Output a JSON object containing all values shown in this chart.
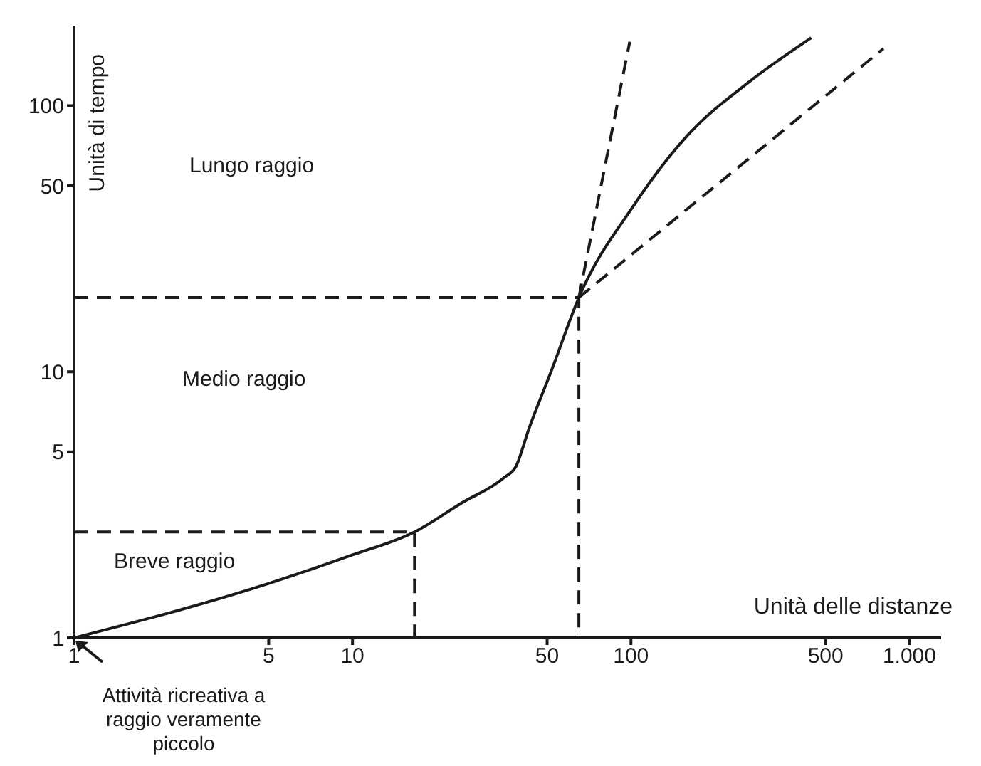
{
  "chart_data": {
    "type": "line",
    "xlabel": "Unità delle distanze",
    "ylabel": "Unità di tempo",
    "log": "xy",
    "grid": false,
    "marker": "none",
    "xlim": [
      1,
      1300
    ],
    "ylim": [
      1,
      200
    ],
    "xticks": [
      1,
      5,
      10,
      50,
      100,
      500,
      {
        "value": 1000,
        "label": "1.000"
      }
    ],
    "yticks": [
      1,
      5,
      10,
      50,
      100
    ],
    "series": [
      {
        "color": "#1a1a1a",
        "line_style": "solid",
        "x": [
          1,
          5,
          10,
          16.7,
          24.5,
          35,
          38.6,
          43,
          52,
          65,
          102,
          159,
          266,
          444
        ],
        "values": [
          1,
          1.6,
          2.05,
          2.5,
          3.2,
          4.0,
          4.4,
          6.1,
          10.2,
          19,
          42,
          77,
          123,
          180
        ]
      },
      {
        "color": "#1a1a1a",
        "line_style": "dashed",
        "x": [
          65,
          99
        ],
        "values": [
          19,
          174
        ]
      },
      {
        "color": "#1a1a1a",
        "line_style": "dashed",
        "x": [
          65,
          807
        ],
        "values": [
          19,
          164
        ]
      },
      {
        "color": "#1a1a1a",
        "line_style": "dashed",
        "x": [
          1,
          16.7,
          16.7
        ],
        "values": [
          2.5,
          2.5,
          1
        ]
      },
      {
        "color": "#1a1a1a",
        "line_style": "dashed",
        "x": [
          1,
          65,
          65
        ],
        "values": [
          19,
          19,
          1
        ]
      }
    ],
    "annotations": [
      "Lungo raggio",
      "Medio raggio",
      "Breve raggio",
      "Attività ricreativa a raggio veramente piccolo"
    ]
  }
}
